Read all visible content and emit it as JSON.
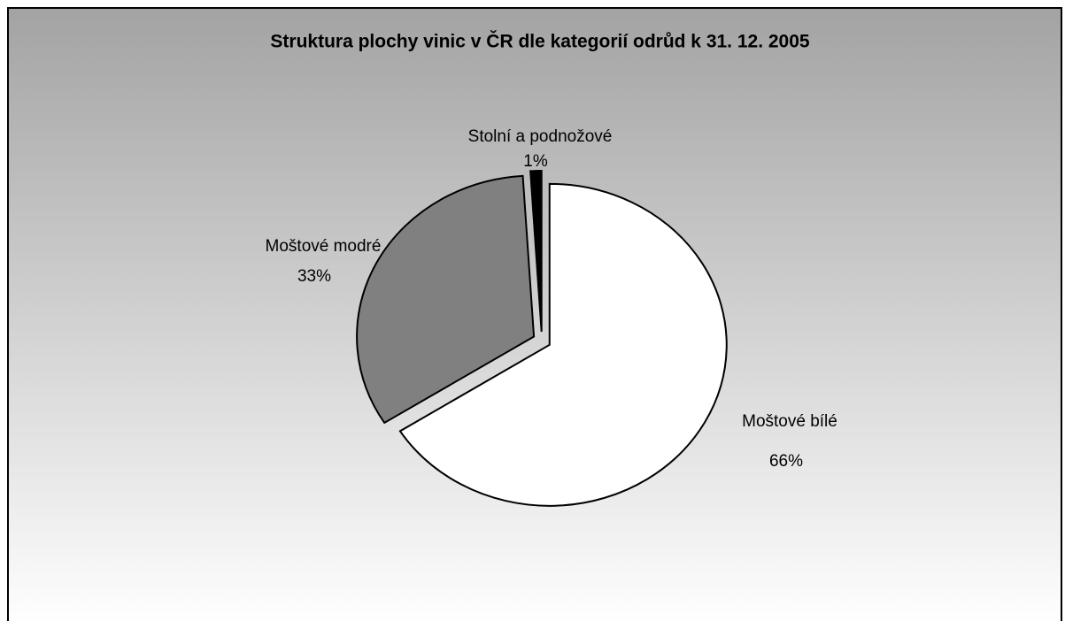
{
  "chart_data": {
    "type": "pie",
    "title": "Struktura plochy vinic v ČR dle kategorií odrůd k 31. 12. 2005",
    "categories": [
      "Moštové bílé",
      "Moštové modré",
      "Stolní a podnožové"
    ],
    "values": [
      66,
      33,
      1
    ],
    "value_labels": [
      "66%",
      "33%",
      "1%"
    ],
    "colors": [
      "#ffffff",
      "#808080",
      "#000000"
    ]
  }
}
